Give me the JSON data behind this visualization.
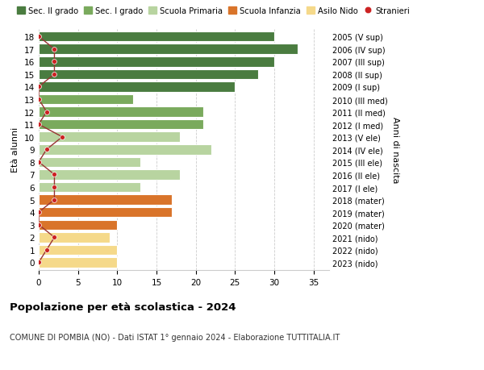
{
  "ages": [
    18,
    17,
    16,
    15,
    14,
    13,
    12,
    11,
    10,
    9,
    8,
    7,
    6,
    5,
    4,
    3,
    2,
    1,
    0
  ],
  "values": [
    30,
    33,
    30,
    28,
    25,
    12,
    21,
    21,
    18,
    22,
    13,
    18,
    13,
    17,
    17,
    10,
    9,
    10,
    10
  ],
  "stranieri": [
    0,
    2,
    2,
    2,
    0,
    0,
    1,
    0,
    3,
    1,
    0,
    2,
    2,
    2,
    0,
    0,
    2,
    1,
    0
  ],
  "right_labels": [
    "2005 (V sup)",
    "2006 (IV sup)",
    "2007 (III sup)",
    "2008 (II sup)",
    "2009 (I sup)",
    "2010 (III med)",
    "2011 (II med)",
    "2012 (I med)",
    "2013 (V ele)",
    "2014 (IV ele)",
    "2015 (III ele)",
    "2016 (II ele)",
    "2017 (I ele)",
    "2018 (mater)",
    "2019 (mater)",
    "2020 (mater)",
    "2021 (nido)",
    "2022 (nido)",
    "2023 (nido)"
  ],
  "bar_colors": [
    "#4a7c40",
    "#4a7c40",
    "#4a7c40",
    "#4a7c40",
    "#4a7c40",
    "#7aaa5d",
    "#7aaa5d",
    "#7aaa5d",
    "#b8d4a0",
    "#b8d4a0",
    "#b8d4a0",
    "#b8d4a0",
    "#b8d4a0",
    "#d9742a",
    "#d9742a",
    "#d9742a",
    "#f5d98a",
    "#f5d98a",
    "#f5d98a"
  ],
  "legend_labels": [
    "Sec. II grado",
    "Sec. I grado",
    "Scuola Primaria",
    "Scuola Infanzia",
    "Asilo Nido",
    "Stranieri"
  ],
  "legend_colors": [
    "#4a7c40",
    "#7aaa5d",
    "#b8d4a0",
    "#d9742a",
    "#f5d98a",
    "#cc2222"
  ],
  "title": "Popolazione per età scolastica - 2024",
  "subtitle": "COMUNE DI POMBIA (NO) - Dati ISTAT 1° gennaio 2024 - Elaborazione TUTTITALIA.IT",
  "ylabel": "Età alunni",
  "right_ylabel": "Anni di nascita",
  "xlim": [
    0,
    37
  ],
  "stranieri_color": "#cc2222",
  "stranieri_line_color": "#993333",
  "bar_height": 0.8,
  "grid_color": "#cccccc"
}
